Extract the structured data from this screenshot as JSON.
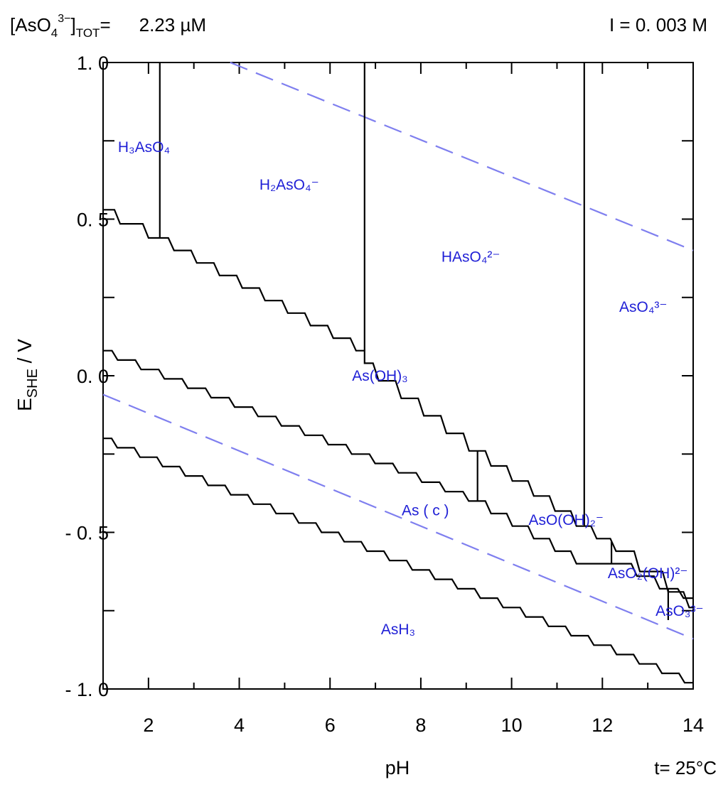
{
  "chart_data": {
    "type": "line",
    "title": "",
    "header": {
      "left_prefix": "[AsO",
      "left_sub": "4",
      "left_sup": "3−",
      "left_bracket": "]",
      "left_sub2": "TOT",
      "left_eq": "=",
      "left_value": "2.23 µM",
      "right": "I =  0. 003  M"
    },
    "xlabel": "pH",
    "ylabel_main": "E",
    "ylabel_sub": "SHE",
    "ylabel_unit": " / V",
    "temperature_note": "t= 25°C",
    "xlim": [
      1,
      14
    ],
    "ylim": [
      -1.0,
      1.0
    ],
    "x_ticks": [
      2,
      4,
      6,
      8,
      10,
      12,
      14
    ],
    "x_tick_labels": [
      "2",
      "4",
      "6",
      "8",
      "10",
      "12",
      "14"
    ],
    "y_ticks": [
      1.0,
      0.5,
      0.0,
      -0.5,
      -1.0
    ],
    "y_tick_labels": [
      "1. 0",
      "0. 5",
      "0. 0",
      "- 0. 5",
      "- 1. 0"
    ],
    "water_lines": [
      {
        "name": "O2/H2O",
        "style": "dashed",
        "color": "#7f7fef",
        "points": [
          [
            3.8,
            1.0
          ],
          [
            14.0,
            0.4
          ]
        ]
      },
      {
        "name": "H2O/H2",
        "style": "dashed",
        "color": "#7f7fef",
        "points": [
          [
            1.0,
            -0.06
          ],
          [
            14.0,
            -0.84
          ]
        ]
      }
    ],
    "boundaries": [
      {
        "name": "H3AsO4/H2AsO4-",
        "points": [
          [
            2.25,
            1.0
          ],
          [
            2.25,
            0.44
          ]
        ]
      },
      {
        "name": "H2AsO4-/HAsO4 2-",
        "points": [
          [
            6.76,
            1.0
          ],
          [
            6.76,
            0.08
          ]
        ]
      },
      {
        "name": "HAsO4 2-/AsO4 3-",
        "points": [
          [
            11.6,
            1.0
          ],
          [
            11.6,
            -0.48
          ]
        ]
      },
      {
        "name": "As(V)/As(III) upper",
        "points": [
          [
            1.0,
            0.53
          ],
          [
            2.25,
            0.44
          ],
          [
            6.76,
            0.08
          ],
          [
            6.76,
            0.04
          ],
          [
            9.25,
            -0.24
          ],
          [
            11.6,
            -0.48
          ],
          [
            12.45,
            -0.56
          ],
          [
            13.7,
            -0.69
          ],
          [
            14.0,
            -0.74
          ]
        ]
      },
      {
        "name": "As(III)/As(c)",
        "points": [
          [
            1.0,
            0.08
          ],
          [
            9.25,
            -0.4
          ],
          [
            11.6,
            -0.6
          ],
          [
            12.45,
            -0.6
          ],
          [
            13.45,
            -0.68
          ],
          [
            14.0,
            -0.71
          ]
        ]
      },
      {
        "name": "As(c)/AsH3",
        "points": [
          [
            1.0,
            -0.2
          ],
          [
            14.0,
            -0.98
          ]
        ]
      },
      {
        "name": "As(OH)3/AsO(OH)2-",
        "points": [
          [
            9.25,
            -0.24
          ],
          [
            9.25,
            -0.4
          ]
        ]
      },
      {
        "name": "AsO(OH)2-/AsO2(OH)2-",
        "points": [
          [
            12.2,
            -0.53
          ],
          [
            12.2,
            -0.6
          ]
        ]
      },
      {
        "name": "AsO2(OH)2-/AsO3 3-",
        "points": [
          [
            13.45,
            -0.68
          ],
          [
            13.45,
            -0.78
          ]
        ]
      }
    ],
    "species_labels": [
      {
        "text": "H₃AsO₄",
        "x": 1.9,
        "y": 0.73
      },
      {
        "text": "H₂AsO₄⁻",
        "x": 5.1,
        "y": 0.61
      },
      {
        "text": "HAsO₄²⁻",
        "x": 9.1,
        "y": 0.38
      },
      {
        "text": "AsO₄³⁻",
        "x": 12.9,
        "y": 0.22
      },
      {
        "text": "As(OH)₃",
        "x": 7.1,
        "y": 0.0
      },
      {
        "text": "As ( c )",
        "x": 8.1,
        "y": -0.43
      },
      {
        "text": "AsO(OH)₂⁻",
        "x": 11.2,
        "y": -0.46
      },
      {
        "text": "AsO₂(OH)²⁻",
        "x": 13.0,
        "y": -0.63
      },
      {
        "text": "AsO₃³⁻",
        "x": 13.7,
        "y": -0.75
      },
      {
        "text": "AsH₃",
        "x": 7.5,
        "y": -0.81
      }
    ]
  }
}
